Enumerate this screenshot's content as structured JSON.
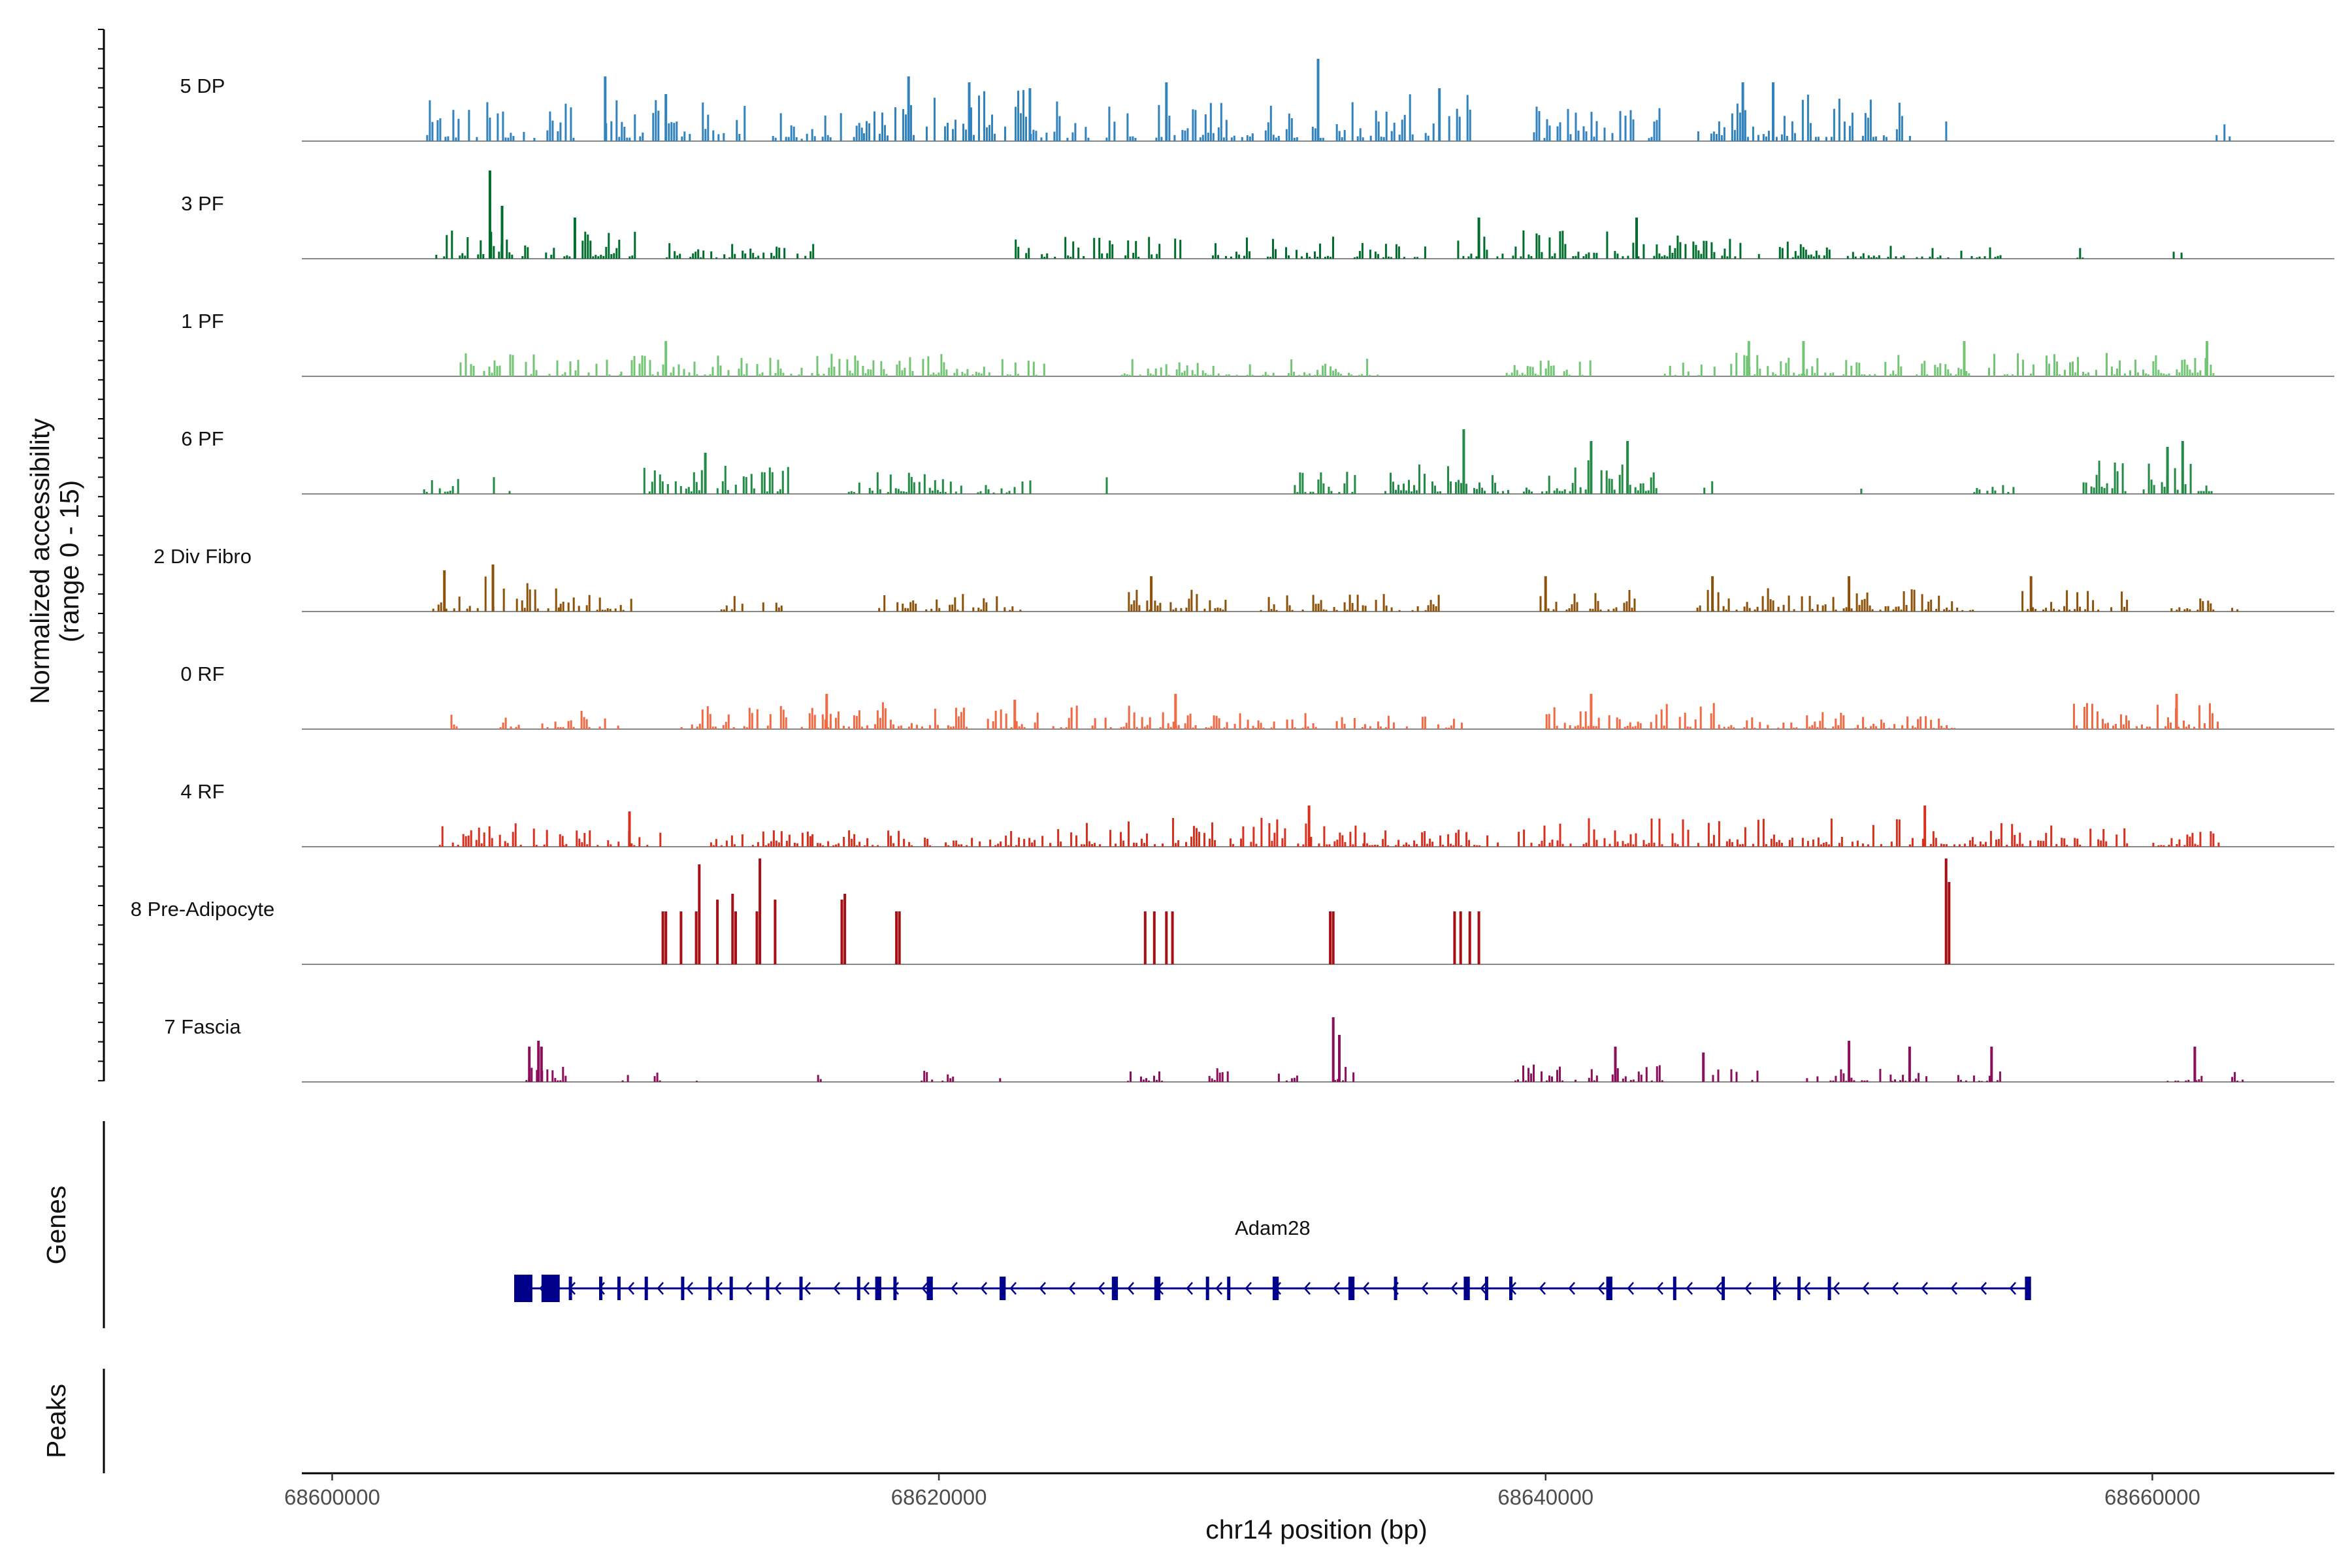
{
  "chart_data": {
    "type": "coverage",
    "title": "",
    "ylabel_line1": "Normalized accessibility",
    "ylabel_line2": "(range 0 - 15)",
    "xlabel": "chr14 position (bp)",
    "xlim": [
      68599000,
      68666000
    ],
    "ylim": [
      0,
      15
    ],
    "x_ticks": [
      68600000,
      68620000,
      68640000,
      68660000
    ],
    "x_tick_labels": [
      "68600000",
      "68620000",
      "68640000",
      "68660000"
    ],
    "genes_label": "Genes",
    "peaks_label": "Peaks",
    "tracks": [
      {
        "name": "5 DP",
        "color": "#3182bd",
        "regions": [
          [
            68603100,
            68608000,
            0.35
          ],
          [
            68609000,
            68613800,
            0.35
          ],
          [
            68614500,
            68617500,
            0.25
          ],
          [
            68617500,
            68623000,
            0.45
          ],
          [
            68623000,
            68628500,
            0.35
          ],
          [
            68628500,
            68633000,
            0.35
          ],
          [
            68633000,
            68637500,
            0.4
          ],
          [
            68639500,
            68643800,
            0.3
          ],
          [
            68645000,
            68652000,
            0.45
          ],
          [
            68653000,
            68653500,
            0.2
          ],
          [
            68662000,
            68662600,
            0.2
          ]
        ],
        "peaks": [
          [
            68609000,
            0.55
          ],
          [
            68611000,
            0.4
          ],
          [
            68619000,
            0.55
          ],
          [
            68621000,
            0.5
          ],
          [
            68623000,
            0.45
          ],
          [
            68627500,
            0.5
          ],
          [
            68632500,
            0.7
          ],
          [
            68636500,
            0.45
          ],
          [
            68646500,
            0.5
          ],
          [
            68647500,
            0.5
          ]
        ]
      },
      {
        "name": "3 PF",
        "color": "#006d2c",
        "regions": [
          [
            68603400,
            68610000,
            0.25
          ],
          [
            68611000,
            68616000,
            0.15
          ],
          [
            68622500,
            68628000,
            0.2
          ],
          [
            68629000,
            68633000,
            0.2
          ],
          [
            68633500,
            68636000,
            0.15
          ],
          [
            68637000,
            68646500,
            0.25
          ],
          [
            68647000,
            68651000,
            0.15
          ],
          [
            68651000,
            68655000,
            0.12
          ],
          [
            68657500,
            68658000,
            0.12
          ],
          [
            68660500,
            68661000,
            0.12
          ]
        ],
        "peaks": [
          [
            68605200,
            0.75
          ],
          [
            68605600,
            0.45
          ],
          [
            68608000,
            0.35
          ],
          [
            68637800,
            0.35
          ],
          [
            68643000,
            0.35
          ]
        ]
      },
      {
        "name": "1 PF",
        "color": "#74c476",
        "regions": [
          [
            68604200,
            68609500,
            0.2
          ],
          [
            68609500,
            68616000,
            0.2
          ],
          [
            68616000,
            68621200,
            0.2
          ],
          [
            68621200,
            68623500,
            0.15
          ],
          [
            68626000,
            68631000,
            0.15
          ],
          [
            68631500,
            68634500,
            0.15
          ],
          [
            68638600,
            68641500,
            0.15
          ],
          [
            68643900,
            68645600,
            0.12
          ],
          [
            68646000,
            68654000,
            0.2
          ],
          [
            68654500,
            68660000,
            0.2
          ],
          [
            68660000,
            68662000,
            0.2
          ]
        ],
        "peaks": [
          [
            68611000,
            0.3
          ],
          [
            68646700,
            0.3
          ],
          [
            68648500,
            0.3
          ],
          [
            68653800,
            0.3
          ],
          [
            68661800,
            0.3
          ]
        ]
      },
      {
        "name": "6 PF",
        "color": "#238b45",
        "regions": [
          [
            68603000,
            68604200,
            0.2
          ],
          [
            68605300,
            68606000,
            0.2
          ],
          [
            68610000,
            68615000,
            0.25
          ],
          [
            68617000,
            68620800,
            0.2
          ],
          [
            68621000,
            68623000,
            0.15
          ],
          [
            68625500,
            68625700,
            0.15
          ],
          [
            68631700,
            68633800,
            0.2
          ],
          [
            68634600,
            68640000,
            0.25
          ],
          [
            68640000,
            68643800,
            0.3
          ],
          [
            68645200,
            68645500,
            0.15
          ],
          [
            68650200,
            68650400,
            0.15
          ],
          [
            68652200,
            68652400,
            0.15
          ],
          [
            68654100,
            68655400,
            0.2
          ],
          [
            68657700,
            68662000,
            0.3
          ]
        ],
        "peaks": [
          [
            68612300,
            0.35
          ],
          [
            68637300,
            0.55
          ],
          [
            68641500,
            0.45
          ],
          [
            68642700,
            0.45
          ],
          [
            68660500,
            0.4
          ],
          [
            68661000,
            0.45
          ]
        ]
      },
      {
        "name": "2 Div Fibro",
        "color": "#8c510a",
        "regions": [
          [
            68603300,
            68607500,
            0.3
          ],
          [
            68607500,
            68610000,
            0.15
          ],
          [
            68612800,
            68615000,
            0.2
          ],
          [
            68618000,
            68620500,
            0.15
          ],
          [
            68620500,
            68622800,
            0.15
          ],
          [
            68625800,
            68629500,
            0.2
          ],
          [
            68630500,
            68636500,
            0.15
          ],
          [
            68639800,
            68643000,
            0.2
          ],
          [
            68644800,
            68652500,
            0.2
          ],
          [
            68652500,
            68654200,
            0.15
          ],
          [
            68655600,
            68659200,
            0.2
          ],
          [
            68660600,
            68662000,
            0.2
          ],
          [
            68662600,
            68662800,
            0.1
          ]
        ],
        "peaks": [
          [
            68603700,
            0.35
          ],
          [
            68605300,
            0.4
          ],
          [
            68627000,
            0.3
          ],
          [
            68640000,
            0.3
          ],
          [
            68645500,
            0.3
          ],
          [
            68650000,
            0.3
          ],
          [
            68656000,
            0.3
          ]
        ]
      },
      {
        "name": "0 RF",
        "color": "#f16a45",
        "regions": [
          [
            68603900,
            68604100,
            0.2
          ],
          [
            68605000,
            68609500,
            0.2
          ],
          [
            68611400,
            68616400,
            0.2
          ],
          [
            68616400,
            68621000,
            0.25
          ],
          [
            68621500,
            68628000,
            0.2
          ],
          [
            68628000,
            68630500,
            0.15
          ],
          [
            68630500,
            68633500,
            0.15
          ],
          [
            68633500,
            68637400,
            0.15
          ],
          [
            68640000,
            68646000,
            0.25
          ],
          [
            68646000,
            68650000,
            0.15
          ],
          [
            68650000,
            68653500,
            0.12
          ],
          [
            68657300,
            68662200,
            0.25
          ]
        ],
        "peaks": [
          [
            68616300,
            0.3
          ],
          [
            68622500,
            0.25
          ],
          [
            68627800,
            0.3
          ],
          [
            68641500,
            0.3
          ],
          [
            68660800,
            0.3
          ]
        ]
      },
      {
        "name": "4 RF",
        "color": "#d7301f",
        "regions": [
          [
            68603000,
            68607600,
            0.2
          ],
          [
            68607600,
            68610800,
            0.15
          ],
          [
            68612200,
            68615800,
            0.15
          ],
          [
            68615800,
            68624500,
            0.15
          ],
          [
            68624500,
            68630000,
            0.25
          ],
          [
            68630000,
            68634000,
            0.25
          ],
          [
            68634000,
            68639500,
            0.15
          ],
          [
            68639500,
            68645000,
            0.25
          ],
          [
            68645000,
            68655000,
            0.25
          ],
          [
            68655000,
            68660000,
            0.2
          ],
          [
            68660000,
            68662200,
            0.15
          ]
        ],
        "peaks": [
          [
            68609800,
            0.3
          ],
          [
            68632200,
            0.35
          ],
          [
            68652500,
            0.35
          ]
        ]
      },
      {
        "name": "8 Pre-Adipocyte",
        "color": "#a50f15",
        "regions": [],
        "peaks": [
          [
            68610900,
            0.45
          ],
          [
            68611000,
            0.45
          ],
          [
            68611500,
            0.45
          ],
          [
            68612000,
            0.45
          ],
          [
            68612100,
            0.85
          ],
          [
            68612700,
            0.55
          ],
          [
            68613200,
            0.6
          ],
          [
            68613300,
            0.45
          ],
          [
            68614000,
            0.45
          ],
          [
            68614100,
            0.9
          ],
          [
            68614600,
            0.55
          ],
          [
            68616800,
            0.55
          ],
          [
            68616900,
            0.6
          ],
          [
            68618600,
            0.45
          ],
          [
            68618700,
            0.45
          ],
          [
            68626800,
            0.45
          ],
          [
            68627100,
            0.45
          ],
          [
            68627500,
            0.45
          ],
          [
            68627700,
            0.45
          ],
          [
            68632900,
            0.45
          ],
          [
            68633000,
            0.45
          ],
          [
            68637000,
            0.45
          ],
          [
            68637200,
            0.45
          ],
          [
            68637500,
            0.45
          ],
          [
            68637800,
            0.45
          ],
          [
            68653200,
            0.9
          ],
          [
            68653300,
            0.7
          ]
        ]
      },
      {
        "name": "7 Fascia",
        "color": "#8b0f5a",
        "regions": [
          [
            68606200,
            68607800,
            0.15
          ],
          [
            68609200,
            68609800,
            0.1
          ],
          [
            68610600,
            68610800,
            0.1
          ],
          [
            68611900,
            68612000,
            0.12
          ],
          [
            68615900,
            68616100,
            0.12
          ],
          [
            68619400,
            68620500,
            0.1
          ],
          [
            68621900,
            68622000,
            0.1
          ],
          [
            68626200,
            68627500,
            0.1
          ],
          [
            68628800,
            68629600,
            0.12
          ],
          [
            68631000,
            68631800,
            0.12
          ],
          [
            68632600,
            68633800,
            0.15
          ],
          [
            68638800,
            68641200,
            0.15
          ],
          [
            68641400,
            68644400,
            0.15
          ],
          [
            68645400,
            68647000,
            0.12
          ],
          [
            68648500,
            68651400,
            0.12
          ],
          [
            68651400,
            68652600,
            0.1
          ],
          [
            68653400,
            68655000,
            0.1
          ],
          [
            68660300,
            68661800,
            0.12
          ],
          [
            68662600,
            68663100,
            0.12
          ]
        ],
        "peaks": [
          [
            68606500,
            0.3
          ],
          [
            68606800,
            0.35
          ],
          [
            68606900,
            0.3
          ],
          [
            68633000,
            0.55
          ],
          [
            68633200,
            0.4
          ],
          [
            68642300,
            0.3
          ],
          [
            68645200,
            0.25
          ],
          [
            68650000,
            0.35
          ],
          [
            68652000,
            0.3
          ],
          [
            68654700,
            0.3
          ],
          [
            68661400,
            0.3
          ]
        ]
      }
    ],
    "gene": {
      "name": "Adam28",
      "strand": "-",
      "start": 68606000,
      "end": 68656000,
      "exons": [
        [
          68606000,
          68606600
        ],
        [
          68606900,
          68607500
        ],
        [
          68607800,
          68607900
        ],
        [
          68608800,
          68608900
        ],
        [
          68609400,
          68609500
        ],
        [
          68610300,
          68610400
        ],
        [
          68611500,
          68611600
        ],
        [
          68612400,
          68612500
        ],
        [
          68613100,
          68613200
        ],
        [
          68614300,
          68614400
        ],
        [
          68615400,
          68615500
        ],
        [
          68617300,
          68617400
        ],
        [
          68617900,
          68618100
        ],
        [
          68618500,
          68618600
        ],
        [
          68619600,
          68619800
        ],
        [
          68622000,
          68622200
        ],
        [
          68625700,
          68625900
        ],
        [
          68627100,
          68627300
        ],
        [
          68628800,
          68628900
        ],
        [
          68629500,
          68629600
        ],
        [
          68631000,
          68631200
        ],
        [
          68633500,
          68633700
        ],
        [
          68635000,
          68635100
        ],
        [
          68637300,
          68637500
        ],
        [
          68638000,
          68638100
        ],
        [
          68638800,
          68638900
        ],
        [
          68642000,
          68642200
        ],
        [
          68644200,
          68644300
        ],
        [
          68645800,
          68645900
        ],
        [
          68647500,
          68647600
        ],
        [
          68648300,
          68648400
        ],
        [
          68649300,
          68649400
        ],
        [
          68655800,
          68656000
        ]
      ]
    }
  }
}
